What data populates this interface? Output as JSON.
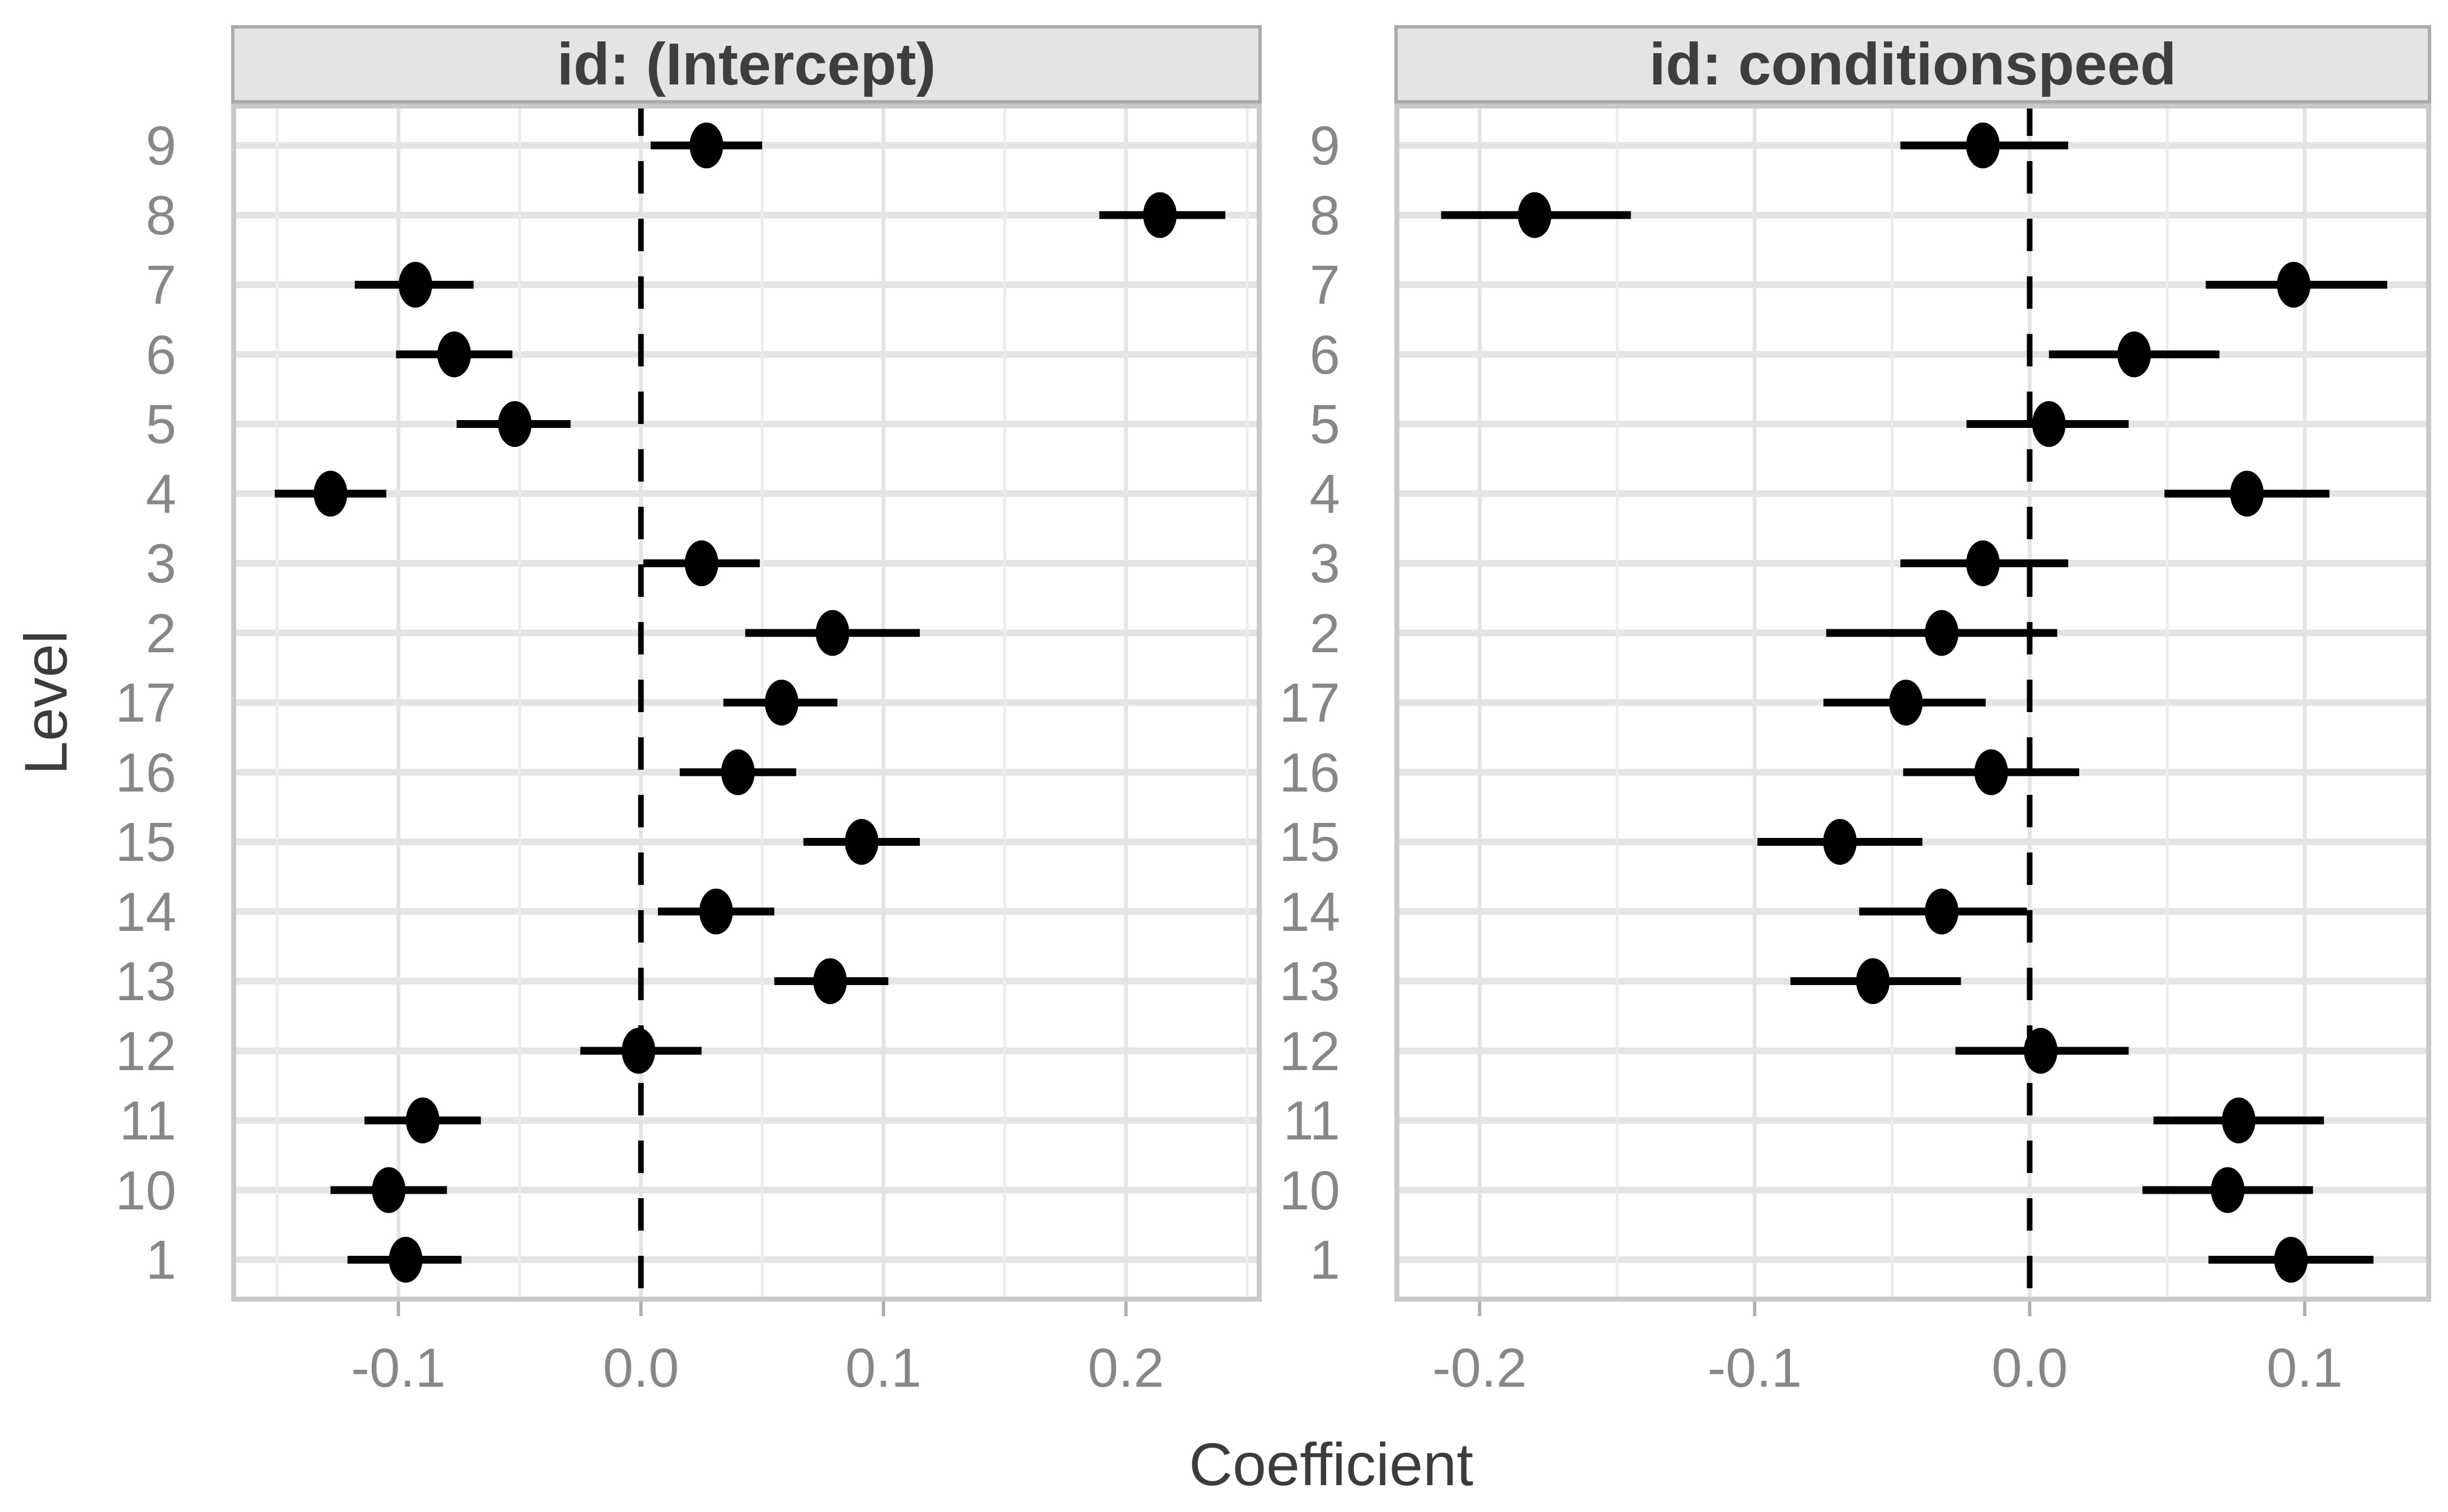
{
  "figure": {
    "x_title": "Coefficient",
    "y_title": "Level"
  },
  "style": {
    "marker": "#000000",
    "error_bar": "#000000",
    "ref_line": "#000000",
    "grid_major": "#E4E4E4",
    "grid_minor": "#ECECEC",
    "panel_border": "#C9C9C9",
    "panel_bg": "#FFFFFF",
    "strip_bg": "#E4E4E4",
    "strip_border": "#ABABAB",
    "strip_text": "#3E3E3E",
    "tick_label": "#878787",
    "axis_title": "#3C3C3C",
    "tick_mark": "#AFAFAF",
    "page_bg": "#FFFFFF"
  },
  "chart_data": [
    {
      "type": "scatter",
      "facet_label": "id: (Intercept)",
      "orientation": "horizontal",
      "error_bars": true,
      "ref_line_x": 0,
      "grid": "on",
      "x_axis": {
        "min": -0.169,
        "max": 0.256,
        "ticks": [
          -0.1,
          0.0,
          0.1,
          0.2
        ],
        "tick_labels": [
          "-0.1",
          "0.0",
          "0.1",
          "0.2"
        ],
        "minor_step": 0.05
      },
      "y_categories": [
        "9",
        "8",
        "7",
        "6",
        "5",
        "4",
        "3",
        "2",
        "17",
        "16",
        "15",
        "14",
        "13",
        "12",
        "11",
        "10",
        "1"
      ],
      "points": [
        {
          "level": "9",
          "estimate": 0.027,
          "ci_low": 0.004,
          "ci_high": 0.05
        },
        {
          "level": "8",
          "estimate": 0.214,
          "ci_low": 0.189,
          "ci_high": 0.241
        },
        {
          "level": "7",
          "estimate": -0.093,
          "ci_low": -0.118,
          "ci_high": -0.069
        },
        {
          "level": "6",
          "estimate": -0.077,
          "ci_low": -0.101,
          "ci_high": -0.053
        },
        {
          "level": "5",
          "estimate": -0.052,
          "ci_low": -0.076,
          "ci_high": -0.029
        },
        {
          "level": "4",
          "estimate": -0.128,
          "ci_low": -0.151,
          "ci_high": -0.105
        },
        {
          "level": "3",
          "estimate": 0.025,
          "ci_low": 0.001,
          "ci_high": 0.049
        },
        {
          "level": "2",
          "estimate": 0.079,
          "ci_low": 0.043,
          "ci_high": 0.115
        },
        {
          "level": "17",
          "estimate": 0.058,
          "ci_low": 0.034,
          "ci_high": 0.081
        },
        {
          "level": "16",
          "estimate": 0.04,
          "ci_low": 0.016,
          "ci_high": 0.064
        },
        {
          "level": "15",
          "estimate": 0.091,
          "ci_low": 0.067,
          "ci_high": 0.115
        },
        {
          "level": "14",
          "estimate": 0.031,
          "ci_low": 0.007,
          "ci_high": 0.055
        },
        {
          "level": "13",
          "estimate": 0.078,
          "ci_low": 0.055,
          "ci_high": 0.102
        },
        {
          "level": "12",
          "estimate": -0.001,
          "ci_low": -0.025,
          "ci_high": 0.025
        },
        {
          "level": "11",
          "estimate": -0.09,
          "ci_low": -0.114,
          "ci_high": -0.066
        },
        {
          "level": "10",
          "estimate": -0.104,
          "ci_low": -0.128,
          "ci_high": -0.08
        },
        {
          "level": "1",
          "estimate": -0.097,
          "ci_low": -0.121,
          "ci_high": -0.074
        }
      ]
    },
    {
      "type": "scatter",
      "facet_label": "id: conditionspeed",
      "orientation": "horizontal",
      "error_bars": true,
      "ref_line_x": 0,
      "grid": "on",
      "x_axis": {
        "min": -0.231,
        "max": 0.146,
        "ticks": [
          -0.2,
          -0.1,
          0.0,
          0.1
        ],
        "tick_labels": [
          "-0.2",
          "-0.1",
          "0.0",
          "0.1"
        ],
        "minor_step": 0.05
      },
      "y_categories": [
        "9",
        "8",
        "7",
        "6",
        "5",
        "4",
        "3",
        "2",
        "17",
        "16",
        "15",
        "14",
        "13",
        "12",
        "11",
        "10",
        "1"
      ],
      "points": [
        {
          "level": "9",
          "estimate": -0.017,
          "ci_low": -0.047,
          "ci_high": 0.014
        },
        {
          "level": "8",
          "estimate": -0.18,
          "ci_low": -0.214,
          "ci_high": -0.145
        },
        {
          "level": "7",
          "estimate": 0.096,
          "ci_low": 0.064,
          "ci_high": 0.13
        },
        {
          "level": "6",
          "estimate": 0.038,
          "ci_low": 0.007,
          "ci_high": 0.069
        },
        {
          "level": "5",
          "estimate": 0.007,
          "ci_low": -0.023,
          "ci_high": 0.036
        },
        {
          "level": "4",
          "estimate": 0.079,
          "ci_low": 0.049,
          "ci_high": 0.109
        },
        {
          "level": "3",
          "estimate": -0.017,
          "ci_low": -0.047,
          "ci_high": 0.014
        },
        {
          "level": "2",
          "estimate": -0.032,
          "ci_low": -0.074,
          "ci_high": 0.01
        },
        {
          "level": "17",
          "estimate": -0.045,
          "ci_low": -0.075,
          "ci_high": -0.016
        },
        {
          "level": "16",
          "estimate": -0.014,
          "ci_low": -0.046,
          "ci_high": 0.018
        },
        {
          "level": "15",
          "estimate": -0.069,
          "ci_low": -0.099,
          "ci_high": -0.039
        },
        {
          "level": "14",
          "estimate": -0.032,
          "ci_low": -0.062,
          "ci_high": -0.001
        },
        {
          "level": "13",
          "estimate": -0.057,
          "ci_low": -0.087,
          "ci_high": -0.025
        },
        {
          "level": "12",
          "estimate": 0.004,
          "ci_low": -0.027,
          "ci_high": 0.036
        },
        {
          "level": "11",
          "estimate": 0.076,
          "ci_low": 0.045,
          "ci_high": 0.107
        },
        {
          "level": "10",
          "estimate": 0.072,
          "ci_low": 0.041,
          "ci_high": 0.103
        },
        {
          "level": "1",
          "estimate": 0.095,
          "ci_low": 0.065,
          "ci_high": 0.125
        }
      ]
    }
  ]
}
